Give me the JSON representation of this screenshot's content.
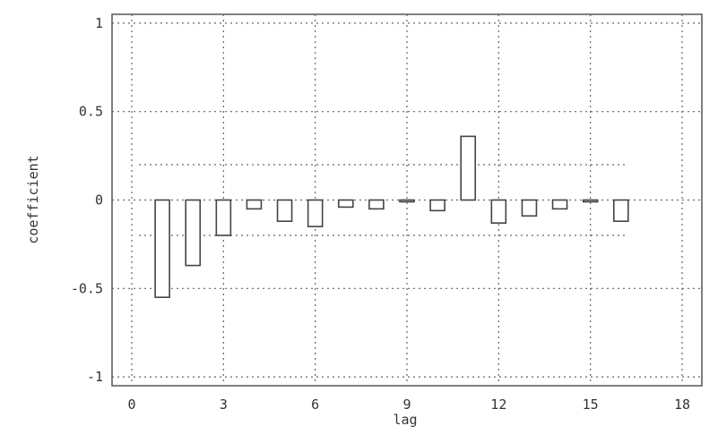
{
  "chart_data": {
    "type": "bar",
    "title": "",
    "xlabel": "lag",
    "ylabel": "coefficient",
    "xlim": [
      0,
      18
    ],
    "ylim": [
      -1.05,
      1.05
    ],
    "x_ticks": [
      0,
      3,
      6,
      9,
      12,
      15,
      18
    ],
    "x_tick_labels": [
      "0",
      "3",
      "6",
      "9",
      "12",
      "15",
      "18"
    ],
    "y_ticks": [
      1,
      0.5,
      0,
      -0.5,
      -1
    ],
    "y_tick_labels": [
      "1",
      "0.5",
      "0",
      "-0.5",
      "-1"
    ],
    "x": [
      1,
      2,
      3,
      4,
      5,
      6,
      7,
      8,
      9,
      10,
      11,
      12,
      13,
      14,
      15,
      16
    ],
    "values": [
      -0.55,
      -0.37,
      -0.2,
      -0.05,
      -0.12,
      -0.15,
      -0.04,
      -0.05,
      -0.01,
      -0.06,
      0.36,
      -0.13,
      -0.09,
      -0.05,
      -0.01,
      -0.12
    ],
    "confidence_bounds": [
      0.2,
      -0.2
    ],
    "grid": true
  }
}
